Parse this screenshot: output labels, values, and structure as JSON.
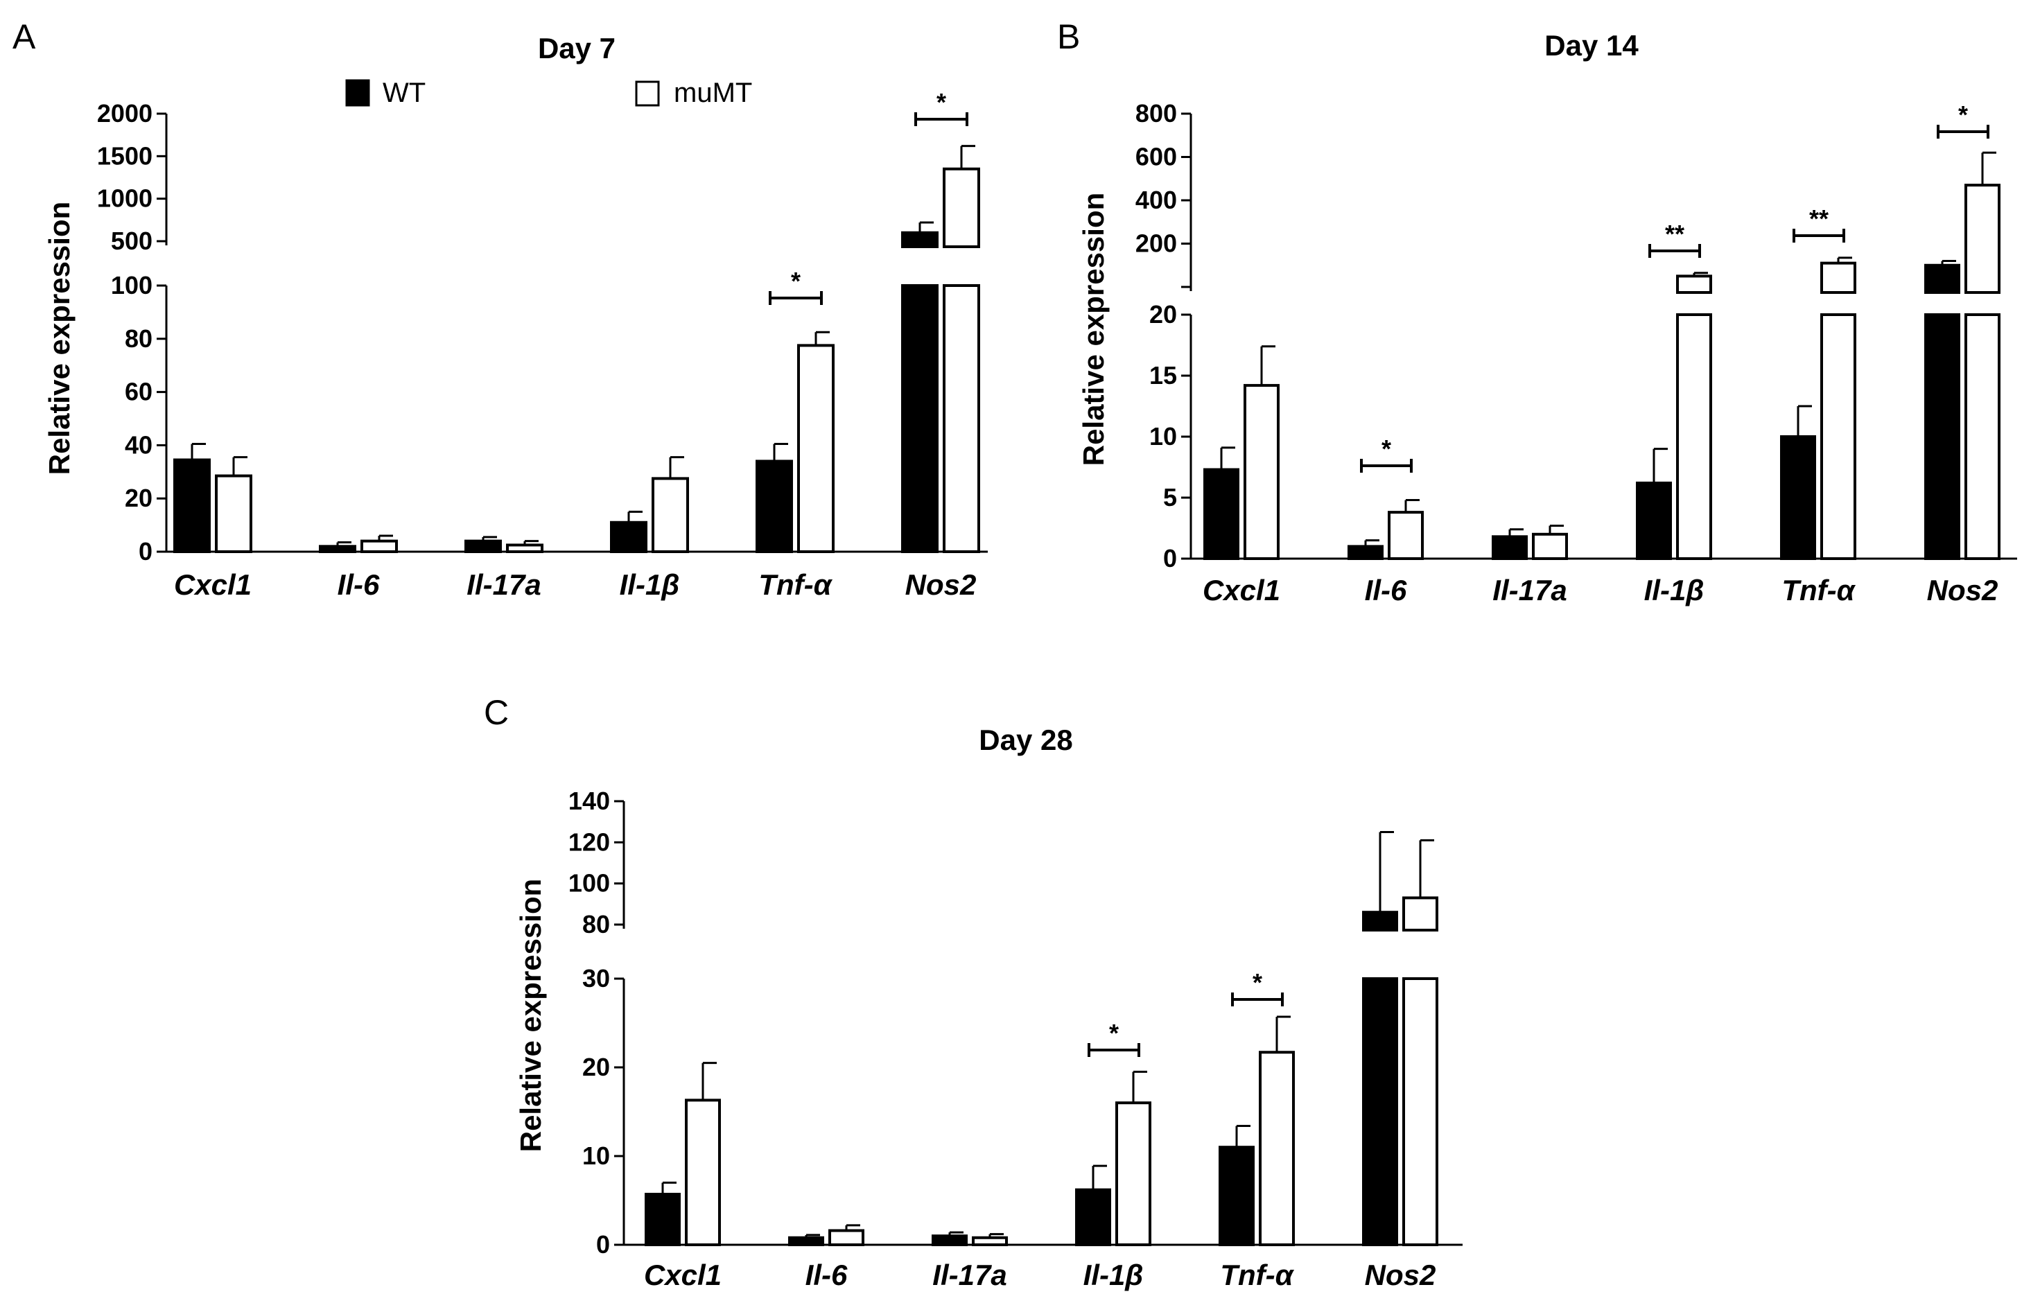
{
  "legend": {
    "wt": "WT",
    "mumt": "muMT"
  },
  "colors": {
    "wt": "#000000",
    "mumt": "#ffffff",
    "stroke": "#000000"
  },
  "chart_data": [
    {
      "panel": "A",
      "type": "bar",
      "title": "Day 7",
      "ylabel": "Relative expression",
      "categories": [
        "Cxcl1",
        "Il-6",
        "Il-17a",
        "Il-1β",
        "Tnf-α",
        "Nos2"
      ],
      "series": [
        {
          "name": "WT",
          "values": [
            34.5,
            2.0,
            4.0,
            11.0,
            34.0,
            600
          ],
          "errors": [
            6,
            1.5,
            1.5,
            4,
            6.5,
            120
          ]
        },
        {
          "name": "muMT",
          "values": [
            28.5,
            4.0,
            2.5,
            27.5,
            77.5,
            1350
          ],
          "errors": [
            7,
            2,
            1.5,
            8,
            5,
            270
          ]
        }
      ],
      "axis_segments": [
        {
          "range": [
            0,
            100
          ],
          "ticks": [
            0,
            20,
            40,
            60,
            80,
            100
          ]
        },
        {
          "range": [
            500,
            2000
          ],
          "ticks": [
            500,
            1000,
            1500,
            2000
          ]
        }
      ],
      "significance": [
        {
          "category": "Tnf-α",
          "label": "*"
        },
        {
          "category": "Nos2",
          "label": "*"
        }
      ]
    },
    {
      "panel": "B",
      "type": "bar",
      "title": "Day 14",
      "ylabel": "Relative expression",
      "categories": [
        "Cxcl1",
        "Il-6",
        "Il-17a",
        "Il-1β",
        "Tnf-α",
        "Nos2"
      ],
      "series": [
        {
          "name": "WT",
          "values": [
            7.3,
            1.0,
            1.8,
            6.2,
            10.0,
            100
          ],
          "errors": [
            1.8,
            0.5,
            0.6,
            2.8,
            2.5,
            20
          ]
        },
        {
          "name": "muMT",
          "values": [
            14.2,
            3.8,
            2.0,
            50,
            110,
            470
          ],
          "errors": [
            3.2,
            1.0,
            0.7,
            15,
            25,
            150
          ]
        }
      ],
      "axis_segments": [
        {
          "range": [
            0,
            20
          ],
          "ticks": [
            0,
            5,
            10,
            15,
            20
          ]
        },
        {
          "range": [
            0,
            800
          ],
          "ticks": [
            200,
            400,
            600,
            800
          ]
        }
      ],
      "significance": [
        {
          "category": "Il-6",
          "label": "*"
        },
        {
          "category": "Il-1β",
          "label": "**"
        },
        {
          "category": "Tnf-α",
          "label": "**"
        },
        {
          "category": "Nos2",
          "label": "*"
        }
      ]
    },
    {
      "panel": "C",
      "type": "bar",
      "title": "Day 28",
      "ylabel": "Relative expression",
      "categories": [
        "Cxcl1",
        "Il-6",
        "Il-17a",
        "Il-1β",
        "Tnf-α",
        "Nos2"
      ],
      "series": [
        {
          "name": "WT",
          "values": [
            5.7,
            0.8,
            1.0,
            6.2,
            11.0,
            86
          ],
          "errors": [
            1.3,
            0.3,
            0.4,
            2.7,
            2.4,
            39
          ]
        },
        {
          "name": "muMT",
          "values": [
            16.3,
            1.6,
            0.8,
            16.0,
            21.7,
            93
          ],
          "errors": [
            4.2,
            0.6,
            0.4,
            3.5,
            4.0,
            28
          ]
        }
      ],
      "axis_segments": [
        {
          "range": [
            0,
            30
          ],
          "ticks": [
            0,
            10,
            20,
            30
          ]
        },
        {
          "range": [
            80,
            140
          ],
          "ticks": [
            80,
            100,
            120,
            140
          ]
        }
      ],
      "significance": [
        {
          "category": "Il-1β",
          "label": "*"
        },
        {
          "category": "Tnf-α",
          "label": "*"
        }
      ]
    }
  ]
}
